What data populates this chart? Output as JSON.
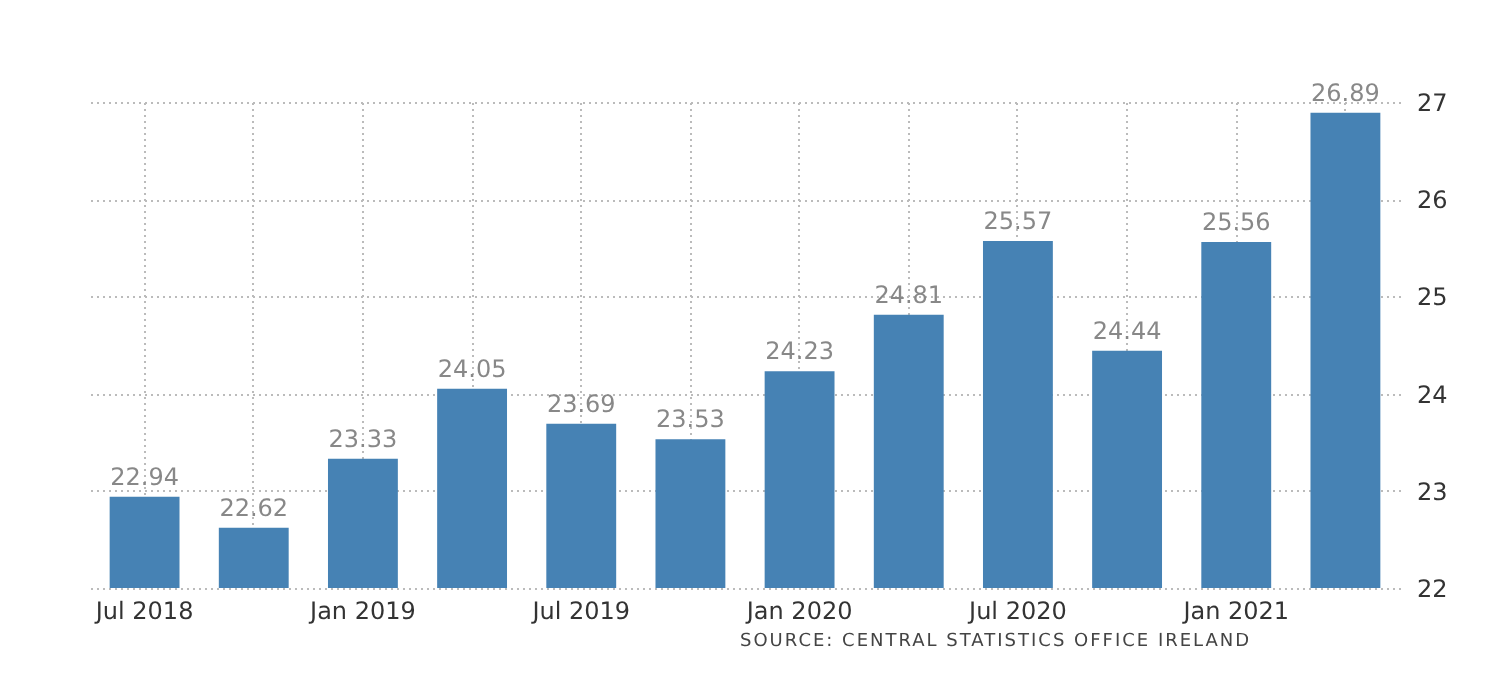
{
  "chart_data": {
    "type": "bar",
    "categories": [
      "Jul 2018",
      null,
      "Jan 2019",
      null,
      "Jul 2019",
      null,
      "Jan 2020",
      null,
      "Jul 2020",
      null,
      "Jan 2021",
      null
    ],
    "values": [
      22.94,
      22.62,
      23.33,
      24.05,
      23.69,
      23.53,
      24.23,
      24.81,
      25.57,
      24.44,
      25.56,
      26.89
    ],
    "color": "#4682b4",
    "ylim": [
      22,
      27
    ],
    "yticks": [
      22,
      23,
      24,
      25,
      26,
      27
    ],
    "grid": true,
    "data_labels": true,
    "annotations": [
      "SOURCE: CENTRAL STATISTICS OFFICE IRELAND"
    ]
  }
}
